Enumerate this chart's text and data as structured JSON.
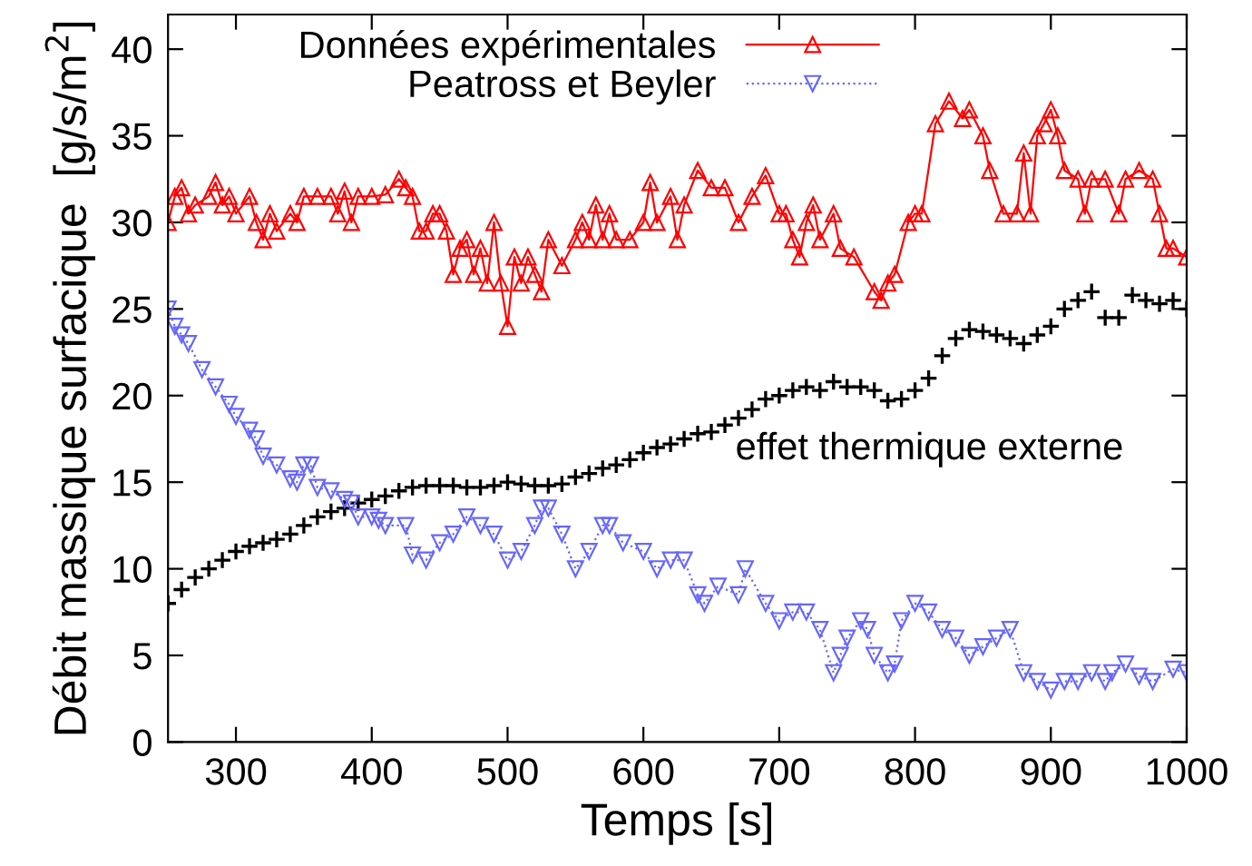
{
  "chart_data": {
    "type": "line",
    "xlabel": "Temps [s]",
    "ylabel": "Débit massique surfacique  [g/s/m$^{2}$]",
    "xlim": [
      250,
      1000
    ],
    "xticks": [
      300,
      400,
      500,
      600,
      700,
      800,
      900,
      1000
    ],
    "ylim": [
      0,
      42
    ],
    "yticks": [
      0,
      5,
      10,
      15,
      20,
      25,
      30,
      35,
      40
    ],
    "grid": false,
    "legend": "top",
    "series": [
      {
        "name": "Données expérimentales",
        "color": "#ff0000",
        "marker": "triangle",
        "line_style": "solid",
        "x": [
          250,
          255,
          260,
          265,
          270,
          280,
          285,
          290,
          295,
          300,
          310,
          315,
          320,
          325,
          330,
          340,
          345,
          350,
          360,
          370,
          375,
          380,
          385,
          390,
          400,
          410,
          420,
          425,
          430,
          435,
          440,
          445,
          450,
          455,
          460,
          465,
          470,
          475,
          480,
          485,
          490,
          495,
          500,
          505,
          510,
          515,
          520,
          525,
          530,
          540,
          550,
          555,
          560,
          565,
          570,
          575,
          580,
          590,
          600,
          605,
          610,
          620,
          625,
          630,
          640,
          650,
          660,
          670,
          680,
          690,
          700,
          705,
          710,
          715,
          720,
          725,
          730,
          740,
          745,
          755,
          770,
          775,
          780,
          785,
          795,
          800,
          805,
          815,
          825,
          835,
          840,
          850,
          855,
          865,
          875,
          880,
          885,
          890,
          895,
          900,
          905,
          910,
          920,
          925,
          930,
          940,
          950,
          955,
          965,
          975,
          980,
          985,
          990,
          1000
        ],
        "values": [
          30,
          31.5,
          32,
          30.5,
          31,
          31.5,
          32.3,
          31,
          31.5,
          30.5,
          31.5,
          30,
          29,
          30.5,
          29.5,
          30.5,
          30,
          31.5,
          31.5,
          31.5,
          30.5,
          31.8,
          30,
          31.5,
          31.5,
          31.6,
          32.5,
          32,
          31.5,
          29.5,
          29.5,
          30.5,
          30.5,
          29.5,
          27,
          28.5,
          29,
          27,
          28.5,
          26.5,
          30,
          26.5,
          24,
          28,
          26.5,
          28,
          27,
          26,
          29,
          27.5,
          29,
          30,
          29,
          31,
          29,
          30.5,
          29,
          29,
          30,
          32.3,
          30,
          31.5,
          29,
          31,
          33,
          32,
          32,
          30,
          31.5,
          32.7,
          30.5,
          30.5,
          29,
          28,
          30,
          31,
          29,
          30.5,
          28.5,
          28,
          26,
          25.5,
          26.5,
          27,
          30,
          30.5,
          30.5,
          35.7,
          37,
          36,
          36.5,
          35,
          33,
          30.5,
          30.5,
          34,
          30.5,
          35,
          35.7,
          36.5,
          35,
          33,
          32.5,
          30.5,
          32.5,
          32.5,
          30.5,
          32.5,
          33,
          32.5,
          30.5,
          28.5,
          28.5,
          28
        ]
      },
      {
        "name": "Peatross et Beyler",
        "color": "#6666ff",
        "marker": "triangle_down",
        "line_style": "dotted",
        "x": [
          250,
          255,
          260,
          265,
          275,
          285,
          295,
          300,
          310,
          315,
          320,
          330,
          340,
          345,
          350,
          355,
          360,
          370,
          380,
          385,
          390,
          400,
          405,
          410,
          425,
          430,
          440,
          450,
          460,
          470,
          480,
          490,
          500,
          510,
          520,
          525,
          530,
          540,
          550,
          560,
          570,
          575,
          585,
          600,
          610,
          620,
          630,
          640,
          645,
          655,
          670,
          675,
          690,
          700,
          710,
          720,
          730,
          740,
          745,
          750,
          760,
          765,
          770,
          780,
          785,
          790,
          800,
          810,
          820,
          830,
          840,
          850,
          860,
          870,
          880,
          890,
          900,
          910,
          920,
          930,
          940,
          945,
          955,
          965,
          975,
          990,
          1000
        ],
        "values": [
          25,
          24,
          23.5,
          23,
          21.5,
          20.5,
          19.5,
          18.8,
          18,
          17.5,
          16.5,
          16,
          15.2,
          15,
          16,
          16,
          14.7,
          14.5,
          14,
          13.8,
          13,
          13,
          12.8,
          12.5,
          12.5,
          10.8,
          10.5,
          11.5,
          12,
          13,
          12.5,
          12,
          10.5,
          11,
          12.5,
          13.5,
          13.5,
          12,
          10,
          11,
          12.5,
          12.5,
          11.5,
          11,
          10,
          10.5,
          10.5,
          8.5,
          8,
          9,
          8.5,
          10,
          8,
          7,
          7.5,
          7.5,
          6.5,
          4,
          5,
          6,
          7,
          6.5,
          5,
          4,
          4.5,
          7,
          8,
          7.5,
          6.5,
          6,
          5,
          5.5,
          6,
          6.5,
          4,
          3.5,
          3,
          3.5,
          3.5,
          4,
          3.5,
          4,
          4.5,
          3.8,
          3.5,
          4.2,
          4
        ]
      },
      {
        "color": "#000000",
        "type": "scatter",
        "marker": "cross",
        "x": [
          250,
          260,
          270,
          280,
          290,
          300,
          310,
          320,
          330,
          340,
          350,
          360,
          370,
          380,
          390,
          400,
          410,
          420,
          430,
          440,
          450,
          460,
          470,
          480,
          490,
          500,
          510,
          520,
          530,
          540,
          550,
          560,
          570,
          580,
          590,
          600,
          610,
          620,
          630,
          640,
          650,
          660,
          670,
          680,
          690,
          700,
          710,
          720,
          730,
          740,
          750,
          760,
          770,
          780,
          790,
          800,
          810,
          820,
          830,
          840,
          850,
          860,
          870,
          880,
          890,
          900,
          910,
          920,
          930,
          940,
          950,
          960,
          970,
          980,
          990,
          1000
        ],
        "values": [
          8,
          8.8,
          9.5,
          10,
          10.5,
          11,
          11.3,
          11.5,
          11.7,
          12,
          12.5,
          13,
          13.3,
          13.5,
          13.8,
          14,
          14.2,
          14.5,
          14.7,
          14.8,
          14.8,
          14.8,
          14.7,
          14.7,
          14.8,
          15,
          14.9,
          14.8,
          14.8,
          14.9,
          15.3,
          15.5,
          15.8,
          16,
          16.3,
          16.7,
          17,
          17.2,
          17.5,
          17.8,
          17.9,
          18.3,
          18.7,
          19.2,
          19.8,
          20,
          20.3,
          20.5,
          20.3,
          20.8,
          20.5,
          20.5,
          20.3,
          19.7,
          19.8,
          20.3,
          21,
          22.3,
          23.3,
          23.8,
          23.7,
          23.5,
          23.3,
          23,
          23.5,
          24,
          25,
          25.5,
          26,
          24.5,
          24.5,
          25.8,
          25.5,
          25.3,
          25.5,
          25
        ]
      }
    ],
    "annotations": [
      "effet thermique externe"
    ]
  }
}
